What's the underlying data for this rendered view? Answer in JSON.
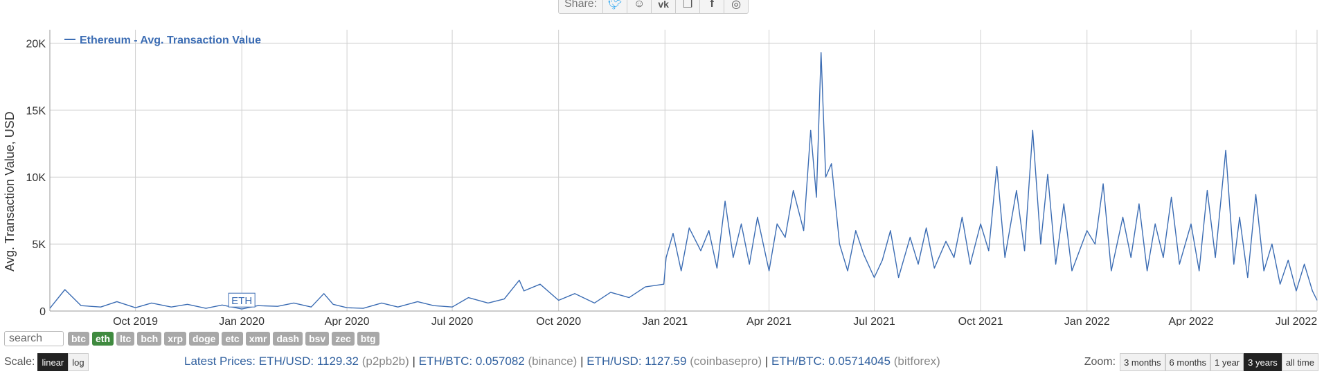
{
  "share": {
    "label": "Share:",
    "icons": [
      "twitter-icon",
      "reddit-icon",
      "vk-icon",
      "copy-icon",
      "facebook-icon",
      "weibo-icon"
    ]
  },
  "colors": {
    "line": "#3b6cb3",
    "grid": "#cfcfcf",
    "active_coin": "#3f8a3f",
    "coin": "#a8a8a8"
  },
  "chart_data": {
    "type": "line",
    "legend": "Ethereum - Avg. Transaction Value",
    "legend_position": "top-left",
    "ylabel": "Avg. Transaction Value, USD",
    "xlabel": "",
    "grid": true,
    "x_range": [
      "2019-07-19",
      "2022-07-19"
    ],
    "ylim": [
      0,
      21000
    ],
    "y_ticks": [
      0,
      5000,
      10000,
      15000,
      20000
    ],
    "y_tick_labels": [
      "0",
      "5K",
      "10K",
      "15K",
      "20K"
    ],
    "x_ticks": [
      "2019-10-01",
      "2020-01-01",
      "2020-04-01",
      "2020-07-01",
      "2020-10-01",
      "2021-01-01",
      "2021-04-01",
      "2021-07-01",
      "2021-10-01",
      "2022-01-01",
      "2022-04-01",
      "2022-07-01"
    ],
    "x_tick_labels": [
      "Oct 2019",
      "Jan 2020",
      "Apr 2020",
      "Jul 2020",
      "Oct 2020",
      "Jan 2021",
      "Apr 2021",
      "Jul 2021",
      "Oct 2021",
      "Jan 2022",
      "Apr 2022",
      "Jul 2022"
    ],
    "annotation": {
      "text": "ETH",
      "date": "2020-01-01",
      "value": 300
    },
    "series": [
      {
        "name": "Ethereum - Avg. Transaction Value",
        "x": [
          "2019-07-19",
          "2019-08-01",
          "2019-08-15",
          "2019-09-01",
          "2019-09-15",
          "2019-10-01",
          "2019-10-15",
          "2019-11-01",
          "2019-11-15",
          "2019-12-01",
          "2019-12-15",
          "2020-01-01",
          "2020-01-15",
          "2020-02-01",
          "2020-02-15",
          "2020-03-01",
          "2020-03-12",
          "2020-03-20",
          "2020-04-01",
          "2020-04-15",
          "2020-05-01",
          "2020-05-15",
          "2020-06-01",
          "2020-06-15",
          "2020-07-01",
          "2020-07-15",
          "2020-08-01",
          "2020-08-15",
          "2020-08-28",
          "2020-09-01",
          "2020-09-15",
          "2020-10-01",
          "2020-10-15",
          "2020-11-01",
          "2020-11-15",
          "2020-12-01",
          "2020-12-15",
          "2020-12-31",
          "2021-01-02",
          "2021-01-08",
          "2021-01-15",
          "2021-01-22",
          "2021-02-01",
          "2021-02-08",
          "2021-02-15",
          "2021-02-22",
          "2021-03-01",
          "2021-03-08",
          "2021-03-15",
          "2021-03-22",
          "2021-04-01",
          "2021-04-08",
          "2021-04-15",
          "2021-04-22",
          "2021-05-01",
          "2021-05-07",
          "2021-05-12",
          "2021-05-16",
          "2021-05-20",
          "2021-05-25",
          "2021-06-01",
          "2021-06-08",
          "2021-06-15",
          "2021-06-22",
          "2021-07-01",
          "2021-07-08",
          "2021-07-15",
          "2021-07-22",
          "2021-08-01",
          "2021-08-08",
          "2021-08-15",
          "2021-08-22",
          "2021-09-01",
          "2021-09-08",
          "2021-09-15",
          "2021-09-22",
          "2021-10-01",
          "2021-10-08",
          "2021-10-15",
          "2021-10-22",
          "2021-11-01",
          "2021-11-08",
          "2021-11-15",
          "2021-11-22",
          "2021-11-28",
          "2021-12-05",
          "2021-12-12",
          "2021-12-19",
          "2022-01-01",
          "2022-01-08",
          "2022-01-15",
          "2022-01-22",
          "2022-02-01",
          "2022-02-08",
          "2022-02-15",
          "2022-02-22",
          "2022-03-01",
          "2022-03-08",
          "2022-03-15",
          "2022-03-22",
          "2022-04-01",
          "2022-04-08",
          "2022-04-15",
          "2022-04-22",
          "2022-05-01",
          "2022-05-08",
          "2022-05-13",
          "2022-05-20",
          "2022-05-27",
          "2022-06-03",
          "2022-06-10",
          "2022-06-17",
          "2022-06-24",
          "2022-07-01",
          "2022-07-08",
          "2022-07-15",
          "2022-07-19"
        ],
        "y": [
          200,
          1600,
          400,
          300,
          700,
          250,
          600,
          300,
          500,
          200,
          450,
          150,
          400,
          350,
          600,
          300,
          1300,
          500,
          250,
          200,
          600,
          300,
          700,
          400,
          300,
          1000,
          600,
          900,
          2300,
          1500,
          2000,
          800,
          1300,
          600,
          1400,
          1000,
          1800,
          2000,
          4000,
          5800,
          3000,
          6200,
          4500,
          6000,
          3200,
          8200,
          4000,
          6500,
          3500,
          7000,
          3000,
          6500,
          5500,
          9000,
          6000,
          13500,
          8500,
          19300,
          10000,
          11000,
          5000,
          3000,
          6000,
          4200,
          2500,
          3800,
          6000,
          2500,
          5500,
          3500,
          6200,
          3200,
          5200,
          4000,
          7000,
          3500,
          6500,
          4500,
          10800,
          4000,
          9000,
          4500,
          13500,
          5000,
          10200,
          3500,
          8000,
          3000,
          6000,
          5000,
          9500,
          3000,
          7000,
          4000,
          8000,
          3000,
          6500,
          4000,
          8500,
          3500,
          6500,
          3000,
          9000,
          4000,
          12000,
          3500,
          7000,
          2500,
          8700,
          3000,
          5000,
          2000,
          3800,
          1500,
          3500,
          1500,
          800
        ]
      }
    ]
  },
  "controls": {
    "search_placeholder": "search",
    "coins": [
      "btc",
      "eth",
      "ltc",
      "bch",
      "xrp",
      "doge",
      "etc",
      "xmr",
      "dash",
      "bsv",
      "zec",
      "btg"
    ],
    "active_coin": "eth",
    "scale_label": "Scale:",
    "scale_options": [
      "linear",
      "log"
    ],
    "active_scale": "linear",
    "zoom_label": "Zoom:",
    "zoom_options": [
      "3 months",
      "6 months",
      "1 year",
      "3 years",
      "all time"
    ],
    "active_zoom": "3 years"
  },
  "latest_prices": {
    "label": "Latest Prices:",
    "items": [
      {
        "pair": "ETH/USD:",
        "value": "1129.32",
        "exchange": "(p2pb2b)"
      },
      {
        "pair": "ETH/BTC:",
        "value": "0.057082",
        "exchange": "(binance)"
      },
      {
        "pair": "ETH/USD:",
        "value": "1127.59",
        "exchange": "(coinbasepro)"
      },
      {
        "pair": "ETH/BTC:",
        "value": "0.05714045",
        "exchange": "(bitforex)"
      }
    ]
  }
}
